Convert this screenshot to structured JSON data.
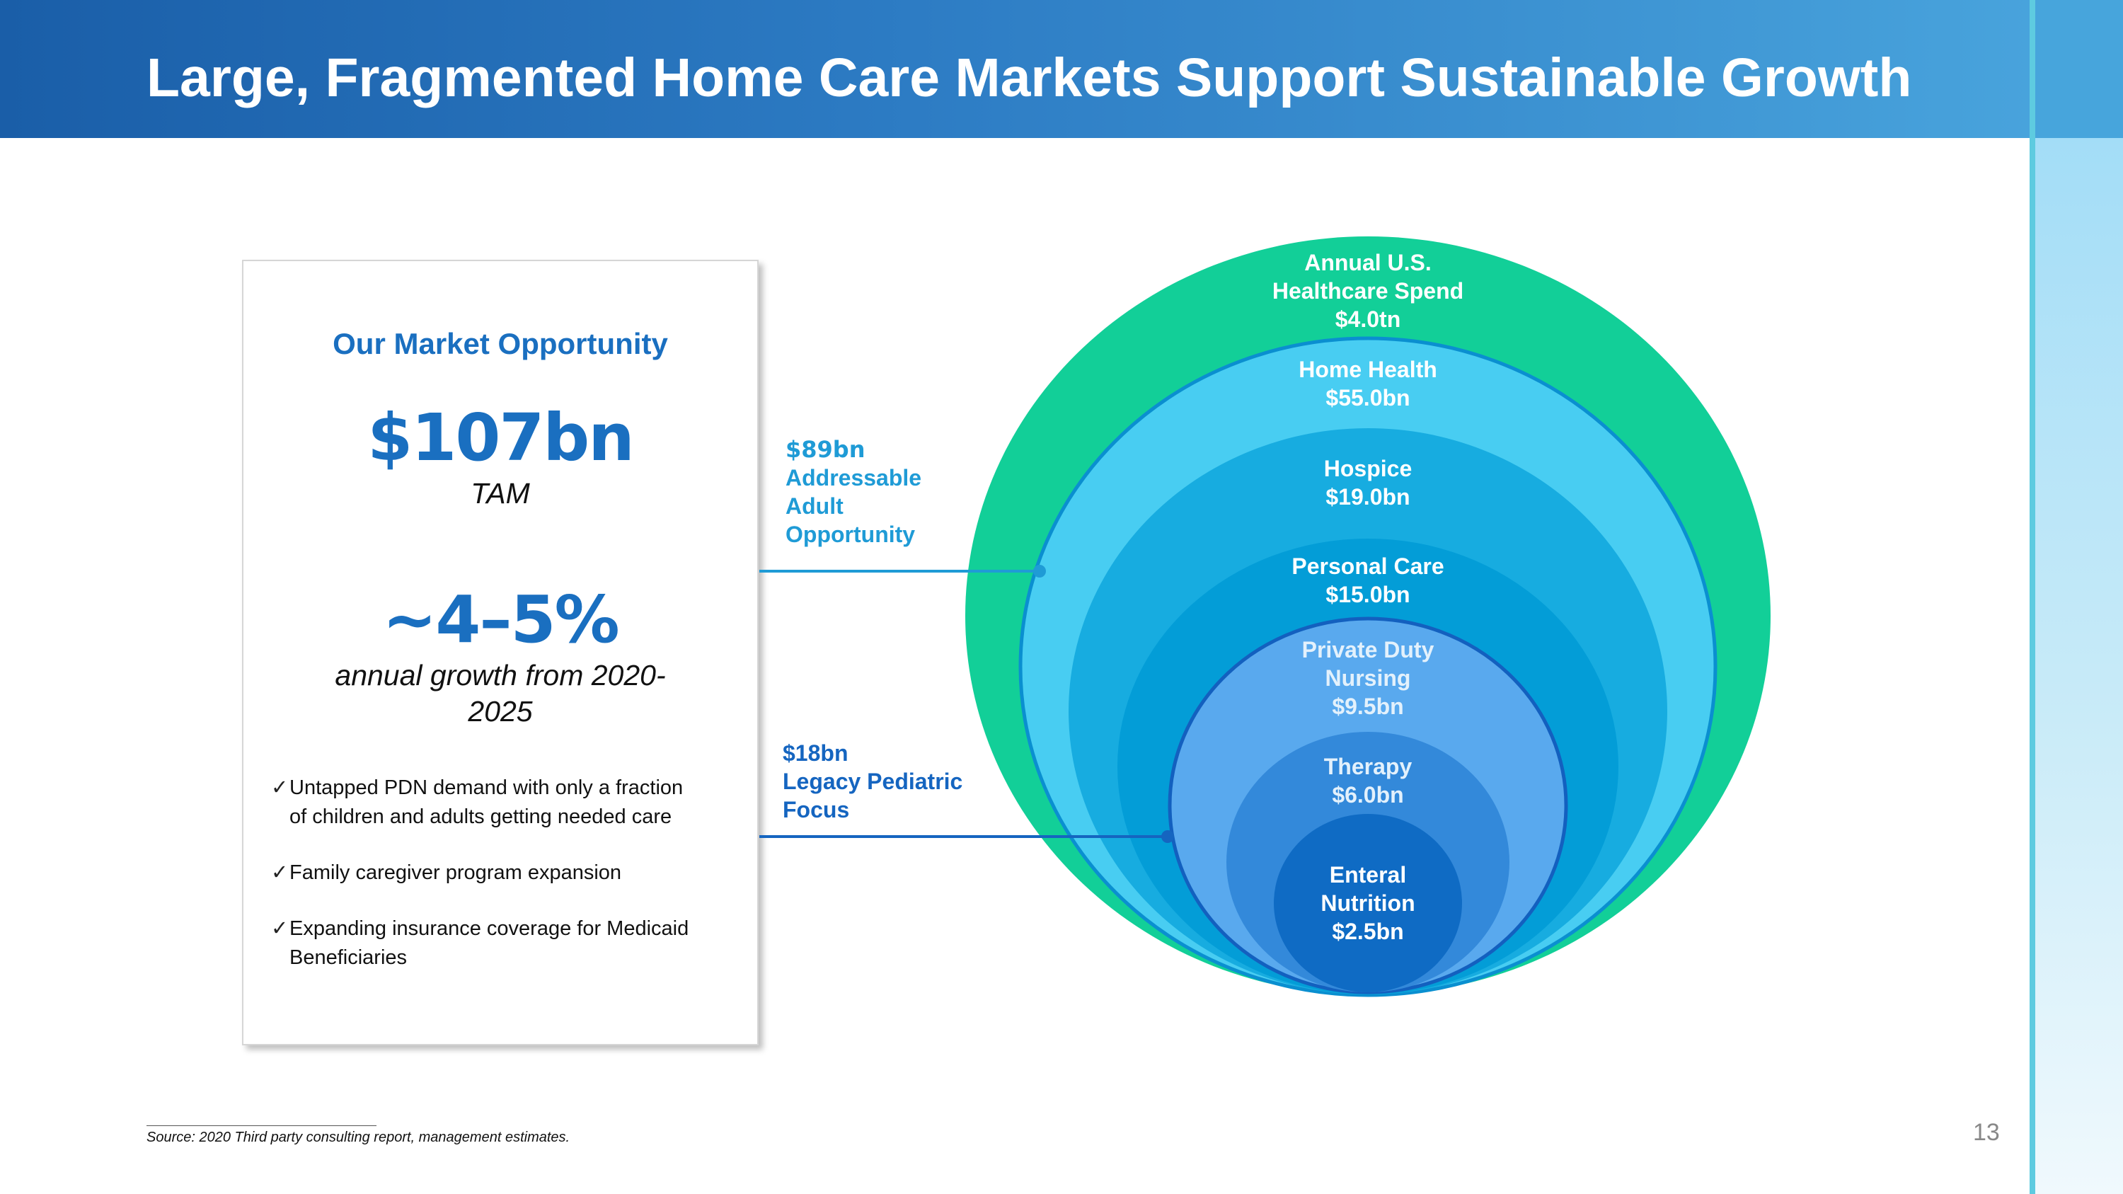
{
  "header": {
    "title": "Large, Fragmented Home Care Markets Support Sustainable Growth"
  },
  "opportunity": {
    "title": "Our Market Opportunity",
    "tam_value": "$107bn",
    "tam_label": "TAM",
    "growth_value": "~4–5%",
    "growth_label_line1": "annual growth from 2020-",
    "growth_label_line2": "2025",
    "bullets": [
      {
        "icon": "check-icon",
        "check": "✓",
        "line1": "Untapped PDN demand with only a fraction",
        "line2": "of children and adults getting needed care"
      },
      {
        "icon": "check-icon",
        "check": "✓",
        "line1": "Family caregiver program expansion",
        "line2": ""
      },
      {
        "icon": "check-icon",
        "check": "✓",
        "line1": "Expanding insurance coverage for Medicaid",
        "line2": "Beneficiaries"
      }
    ]
  },
  "callouts": {
    "adult": {
      "value": "$89bn",
      "line1": "Addressable",
      "line2": "Adult",
      "line3": "Opportunity"
    },
    "pediatric": {
      "value": "$18bn",
      "line1": "Legacy Pediatric",
      "line2": "Focus"
    }
  },
  "rings": [
    {
      "line1": "Annual U.S.",
      "line2": "Healthcare Spend",
      "value": "$4.0tn",
      "color": "#12cf98"
    },
    {
      "line1": "Home Health",
      "value": "$55.0bn",
      "color": "#48cdf2"
    },
    {
      "line1": "Hospice",
      "value": "$19.0bn",
      "color": "#17ace0"
    },
    {
      "line1": "Personal Care",
      "value": "$15.0bn",
      "color": "#039dd7"
    },
    {
      "line1": "Private Duty",
      "line2": "Nursing",
      "value": "$9.5bn",
      "color": "#59a9ee"
    },
    {
      "line1": "Therapy",
      "value": "$6.0bn",
      "color": "#3389da"
    },
    {
      "line1": "Enteral",
      "line2": "Nutrition",
      "value": "$2.5bn",
      "color": "#0f6bc4"
    }
  ],
  "footer": {
    "source": "Source: 2020 Third party consulting report, management estimates.",
    "page_number": "13"
  }
}
